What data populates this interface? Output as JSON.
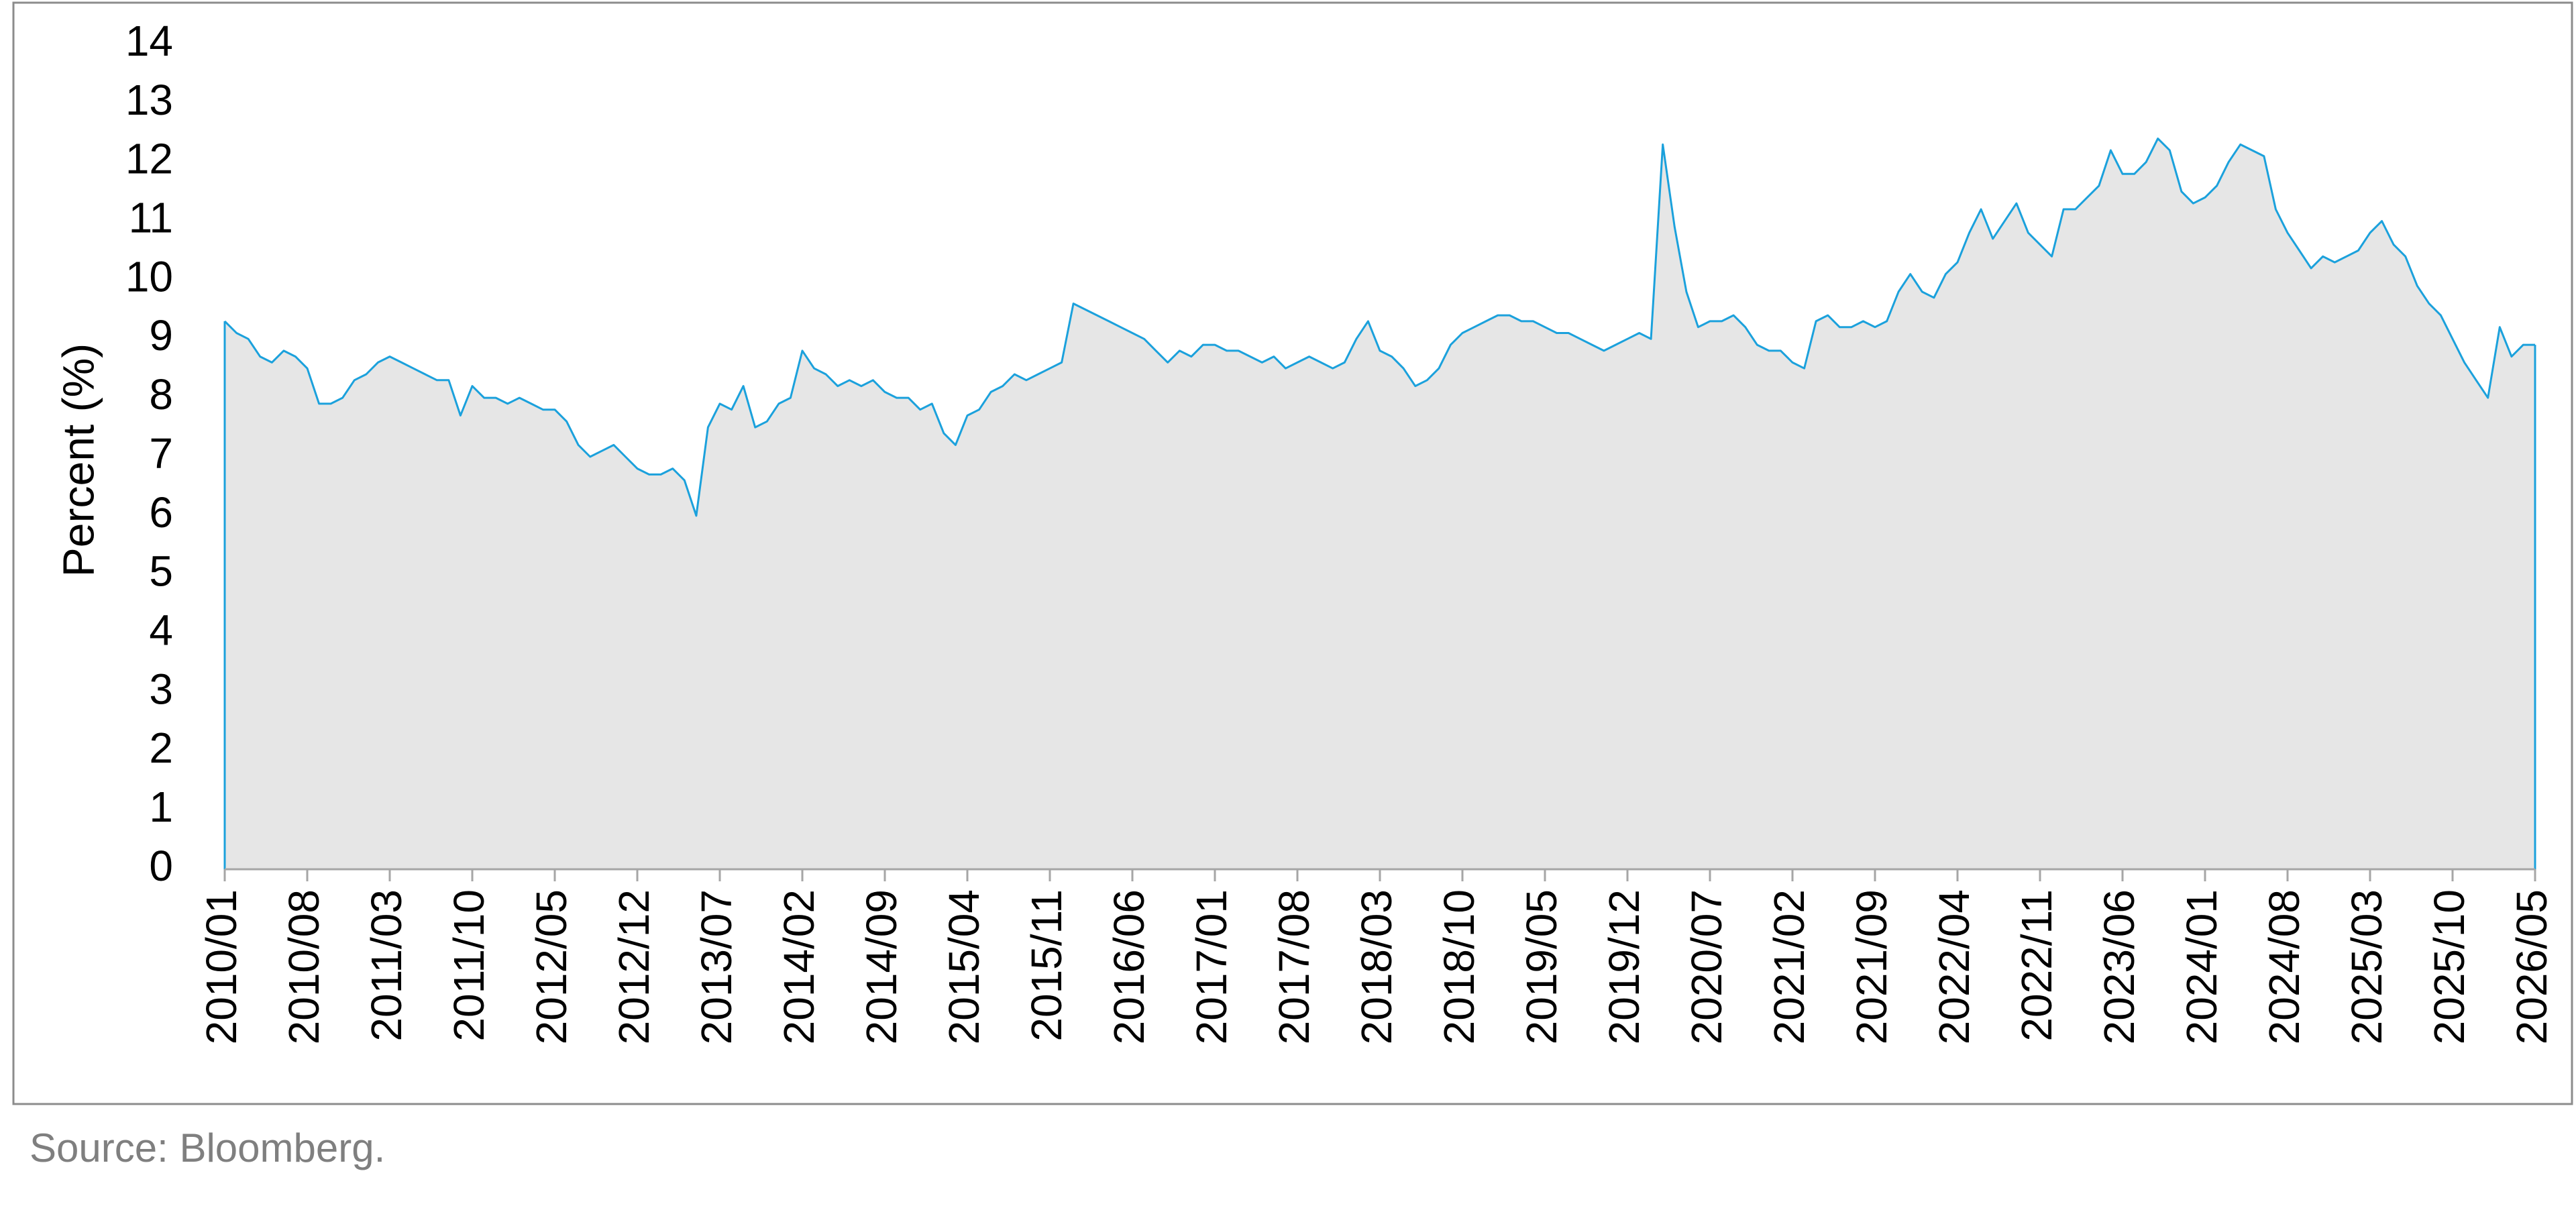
{
  "chart_data": {
    "type": "area",
    "y_label": "Percent (%)",
    "source": "Source: Bloomberg.",
    "ylim": [
      0,
      14
    ],
    "yticks": [
      0,
      1,
      2,
      3,
      4,
      5,
      6,
      7,
      8,
      9,
      10,
      11,
      12,
      13,
      14
    ],
    "line_color": "#1ba1dc",
    "fill_color": "#e6e6e6",
    "x": [
      "2010/01",
      null,
      null,
      null,
      null,
      null,
      null,
      "2010/08",
      null,
      null,
      null,
      null,
      null,
      null,
      "2011/03",
      null,
      null,
      null,
      null,
      null,
      null,
      "2011/10",
      null,
      null,
      null,
      null,
      null,
      null,
      "2012/05",
      null,
      null,
      null,
      null,
      null,
      null,
      "2012/12",
      null,
      null,
      null,
      null,
      null,
      null,
      "2013/07",
      null,
      null,
      null,
      null,
      null,
      null,
      "2014/02",
      null,
      null,
      null,
      null,
      null,
      null,
      "2014/09",
      null,
      null,
      null,
      null,
      null,
      null,
      "2015/04",
      null,
      null,
      null,
      null,
      null,
      null,
      "2015/11",
      null,
      null,
      null,
      null,
      null,
      null,
      "2016/06",
      null,
      null,
      null,
      null,
      null,
      null,
      "2017/01",
      null,
      null,
      null,
      null,
      null,
      null,
      "2017/08",
      null,
      null,
      null,
      null,
      null,
      null,
      "2018/03",
      null,
      null,
      null,
      null,
      null,
      null,
      "2018/10",
      null,
      null,
      null,
      null,
      null,
      null,
      "2019/05",
      null,
      null,
      null,
      null,
      null,
      null,
      "2019/12",
      null,
      null,
      null,
      null,
      null,
      null,
      "2020/07",
      null,
      null,
      null,
      null,
      null,
      null,
      "2021/02",
      null,
      null,
      null,
      null,
      null,
      null,
      "2021/09",
      null,
      null,
      null,
      null,
      null,
      null,
      "2022/04",
      null,
      null,
      null,
      null,
      null,
      null,
      "2022/11",
      null,
      null,
      null,
      null,
      null,
      null,
      "2023/06",
      null,
      null,
      null,
      null,
      null,
      null,
      "2024/01",
      null,
      null,
      null,
      null,
      null,
      null,
      "2024/08",
      null,
      null,
      null,
      null,
      null,
      null,
      "2025/03",
      null,
      null,
      null,
      null,
      null,
      null,
      "2025/10",
      null,
      null,
      null,
      null,
      null,
      null,
      "2026/05"
    ],
    "values": [
      9.3,
      9.1,
      9.0,
      8.7,
      8.6,
      8.8,
      8.7,
      8.5,
      7.9,
      7.9,
      8.0,
      8.3,
      8.4,
      8.6,
      8.7,
      8.6,
      8.5,
      8.4,
      8.3,
      8.3,
      7.7,
      8.2,
      8.0,
      8.0,
      7.9,
      8.0,
      7.9,
      7.8,
      7.8,
      7.6,
      7.2,
      7.0,
      7.1,
      7.2,
      7.0,
      6.8,
      6.7,
      6.7,
      6.8,
      6.6,
      6.0,
      7.5,
      7.9,
      7.8,
      8.2,
      7.5,
      7.6,
      7.9,
      8.0,
      8.8,
      8.5,
      8.4,
      8.2,
      8.3,
      8.2,
      8.3,
      8.1,
      8.0,
      8.0,
      7.8,
      7.9,
      7.4,
      7.2,
      7.7,
      7.8,
      8.1,
      8.2,
      8.4,
      8.3,
      8.4,
      8.5,
      8.6,
      9.6,
      9.5,
      9.4,
      9.3,
      9.2,
      9.1,
      9.0,
      8.8,
      8.6,
      8.8,
      8.7,
      8.9,
      8.9,
      8.8,
      8.8,
      8.7,
      8.6,
      8.7,
      8.5,
      8.6,
      8.7,
      8.6,
      8.5,
      8.6,
      9.0,
      9.3,
      8.8,
      8.7,
      8.5,
      8.2,
      8.3,
      8.5,
      8.9,
      9.1,
      9.2,
      9.3,
      9.4,
      9.4,
      9.3,
      9.3,
      9.2,
      9.1,
      9.1,
      9.0,
      8.9,
      8.8,
      8.9,
      9.0,
      9.1,
      9.0,
      12.3,
      10.9,
      9.8,
      9.2,
      9.3,
      9.3,
      9.4,
      9.2,
      8.9,
      8.8,
      8.8,
      8.6,
      8.5,
      9.3,
      9.4,
      9.2,
      9.2,
      9.3,
      9.2,
      9.3,
      9.8,
      10.1,
      9.8,
      9.7,
      10.1,
      10.3,
      10.8,
      11.2,
      10.7,
      11.0,
      11.3,
      10.8,
      10.6,
      10.4,
      11.2,
      11.2,
      11.4,
      11.6,
      12.2,
      11.8,
      11.8,
      12.0,
      12.4,
      12.2,
      11.5,
      11.3,
      11.4,
      11.6,
      12.0,
      12.3,
      12.2,
      12.1,
      11.2,
      10.8,
      10.5,
      10.2,
      10.4,
      10.3,
      10.4,
      10.5,
      10.8,
      11.0,
      10.6,
      10.4,
      9.9,
      9.6,
      9.4,
      9.0,
      8.6,
      8.3,
      8.0,
      9.2,
      8.7,
      8.9,
      8.9
    ]
  }
}
